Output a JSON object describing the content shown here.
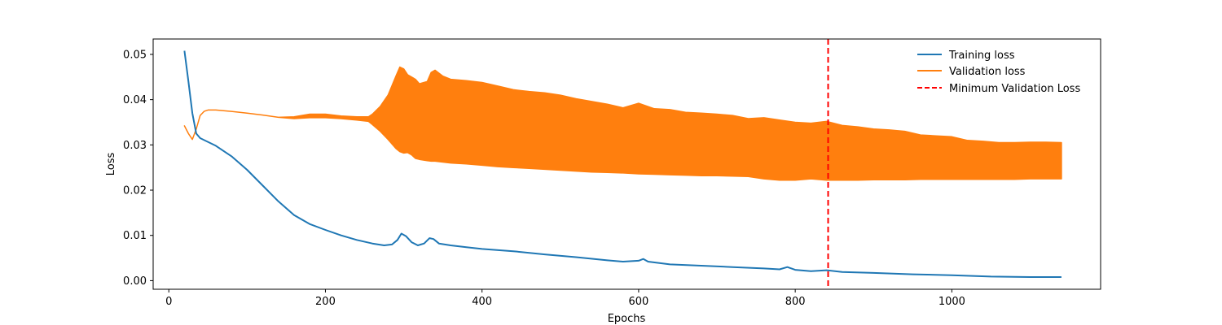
{
  "chart_data": {
    "type": "line",
    "title": "",
    "xlabel": "Epochs",
    "ylabel": "Loss",
    "xlim": [
      -20,
      1190
    ],
    "ylim": [
      -0.0019,
      0.0534
    ],
    "x_ticks": [
      0,
      200,
      400,
      600,
      800,
      1000
    ],
    "x_tick_labels": [
      "0",
      "200",
      "400",
      "600",
      "800",
      "1000"
    ],
    "y_ticks": [
      0.0,
      0.01,
      0.02,
      0.03,
      0.04,
      0.05
    ],
    "y_tick_labels": [
      "0.00",
      "0.01",
      "0.02",
      "0.03",
      "0.04",
      "0.05"
    ],
    "grid": false,
    "legend_position": "top-right",
    "series": [
      {
        "name": "Training loss",
        "color": "#1f77b4",
        "style": "solid",
        "x": [
          20,
          25,
          30,
          35,
          40,
          60,
          80,
          100,
          120,
          140,
          160,
          180,
          200,
          220,
          240,
          260,
          275,
          285,
          292,
          297,
          303,
          310,
          318,
          326,
          333,
          338,
          345,
          360,
          380,
          400,
          440,
          480,
          520,
          560,
          580,
          600,
          606,
          612,
          640,
          680,
          720,
          760,
          780,
          790,
          800,
          820,
          840,
          860,
          900,
          950,
          1000,
          1050,
          1100,
          1140
        ],
        "y": [
          0.0508,
          0.044,
          0.037,
          0.0325,
          0.0315,
          0.0298,
          0.0275,
          0.0245,
          0.021,
          0.0175,
          0.0145,
          0.0125,
          0.0112,
          0.01,
          0.009,
          0.0082,
          0.0078,
          0.008,
          0.009,
          0.0104,
          0.0098,
          0.0085,
          0.0078,
          0.0082,
          0.0094,
          0.0092,
          0.0082,
          0.0078,
          0.0074,
          0.007,
          0.0065,
          0.0058,
          0.0052,
          0.0045,
          0.0042,
          0.0044,
          0.0048,
          0.0042,
          0.0036,
          0.0033,
          0.003,
          0.0027,
          0.0025,
          0.003,
          0.0024,
          0.0021,
          0.0023,
          0.0019,
          0.0017,
          0.0014,
          0.0012,
          0.0009,
          0.0008,
          0.0008
        ]
      },
      {
        "name": "Validation loss",
        "color": "#ff7f0e",
        "style": "solid",
        "x": [
          20,
          25,
          30,
          35,
          40,
          45,
          50,
          60,
          80,
          100,
          120,
          140,
          160,
          180,
          200,
          220,
          240,
          255,
          260,
          270,
          280,
          290,
          295,
          300,
          305,
          310,
          315,
          320,
          330,
          335,
          340,
          350,
          360,
          380,
          400,
          420,
          440,
          460,
          480,
          500,
          520,
          540,
          560,
          580,
          600,
          620,
          640,
          660,
          680,
          700,
          720,
          740,
          760,
          780,
          800,
          820,
          840,
          860,
          880,
          900,
          920,
          940,
          960,
          980,
          1000,
          1020,
          1040,
          1060,
          1080,
          1100,
          1120,
          1140
        ],
        "upper": [
          0.0342,
          0.0325,
          0.0312,
          0.0335,
          0.0365,
          0.0374,
          0.0377,
          0.0377,
          0.0374,
          0.037,
          0.0366,
          0.0361,
          0.0362,
          0.0368,
          0.0368,
          0.0364,
          0.0362,
          0.0362,
          0.0368,
          0.0385,
          0.041,
          0.0452,
          0.0472,
          0.0468,
          0.0455,
          0.045,
          0.0445,
          0.0435,
          0.044,
          0.046,
          0.0465,
          0.0452,
          0.0445,
          0.0442,
          0.0438,
          0.043,
          0.0422,
          0.0418,
          0.0415,
          0.041,
          0.0402,
          0.0396,
          0.039,
          0.0382,
          0.0392,
          0.038,
          0.0378,
          0.0372,
          0.037,
          0.0368,
          0.0365,
          0.0358,
          0.036,
          0.0355,
          0.035,
          0.0348,
          0.0352,
          0.0343,
          0.034,
          0.0335,
          0.0333,
          0.033,
          0.0322,
          0.032,
          0.0318,
          0.031,
          0.0308,
          0.0305,
          0.0305,
          0.0306,
          0.0306,
          0.0305
        ],
        "lower": [
          0.0342,
          0.0325,
          0.0312,
          0.0335,
          0.0365,
          0.0374,
          0.0377,
          0.0377,
          0.0374,
          0.037,
          0.0366,
          0.0361,
          0.0358,
          0.036,
          0.036,
          0.0358,
          0.0355,
          0.0352,
          0.0345,
          0.033,
          0.0312,
          0.0292,
          0.0285,
          0.0282,
          0.0283,
          0.0278,
          0.027,
          0.0268,
          0.0265,
          0.0264,
          0.0264,
          0.0262,
          0.026,
          0.0258,
          0.0255,
          0.0252,
          0.025,
          0.0248,
          0.0246,
          0.0244,
          0.0242,
          0.024,
          0.0239,
          0.0238,
          0.0236,
          0.0235,
          0.0234,
          0.0233,
          0.0232,
          0.0232,
          0.0231,
          0.023,
          0.0225,
          0.0222,
          0.0222,
          0.0225,
          0.0222,
          0.0222,
          0.0222,
          0.0223,
          0.0223,
          0.0223,
          0.0224,
          0.0224,
          0.0224,
          0.0224,
          0.0224,
          0.0224,
          0.0224,
          0.0225,
          0.0225,
          0.0225
        ]
      },
      {
        "name": "Minimum Validation Loss",
        "color": "#ff0000",
        "style": "dashed",
        "x": 842
      }
    ]
  }
}
